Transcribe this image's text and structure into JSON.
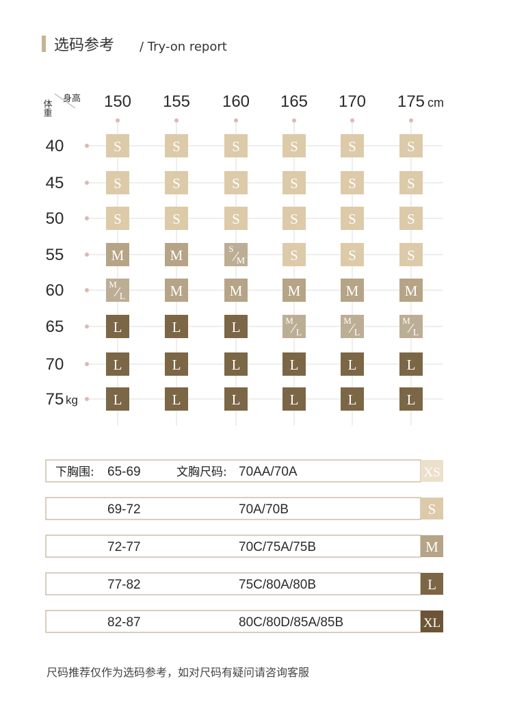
{
  "header": {
    "title": "选码参考",
    "subtitle": "/ Try-on report"
  },
  "grid": {
    "height_label": "身高",
    "weight_label": "体重",
    "heights": [
      "150",
      "155",
      "160",
      "165",
      "170",
      "175"
    ],
    "height_unit": "cm",
    "weights": [
      "40",
      "45",
      "50",
      "55",
      "60",
      "65",
      "70",
      "75"
    ],
    "weight_unit": "kg",
    "cells": [
      [
        "S",
        "S",
        "S",
        "S",
        "S",
        "S"
      ],
      [
        "S",
        "S",
        "S",
        "S",
        "S",
        "S"
      ],
      [
        "S",
        "S",
        "S",
        "S",
        "S",
        "S"
      ],
      [
        "M",
        "M",
        [
          "S",
          "M"
        ],
        "S",
        "S",
        "S"
      ],
      [
        [
          "M",
          "L"
        ],
        "M",
        "M",
        "M",
        "M",
        "M"
      ],
      [
        "L",
        "L",
        "L",
        [
          "M",
          "L"
        ],
        [
          "M",
          "L"
        ],
        [
          "M",
          "L"
        ]
      ],
      [
        "L",
        "L",
        "L",
        "L",
        "L",
        "L"
      ],
      [
        "L",
        "L",
        "L",
        "L",
        "L",
        "L"
      ]
    ]
  },
  "bra_table": {
    "underbust_label": "下胸围:",
    "bra_label": "文胸尺码:",
    "rows": [
      {
        "underbust": "65-69",
        "bra": "70AA/70A",
        "size": "XS"
      },
      {
        "underbust": "69-72",
        "bra": "70A/70B",
        "size": "S"
      },
      {
        "underbust": "72-77",
        "bra": "70C/75A/75B",
        "size": "M"
      },
      {
        "underbust": "77-82",
        "bra": "75C/80A/80B",
        "size": "L"
      },
      {
        "underbust": "82-87",
        "bra": "80C/80D/85A/85B",
        "size": "XL"
      }
    ]
  },
  "footer": {
    "note": "尺码推荐仅作为选码参考，如对尺码有疑问请咨询客服"
  }
}
